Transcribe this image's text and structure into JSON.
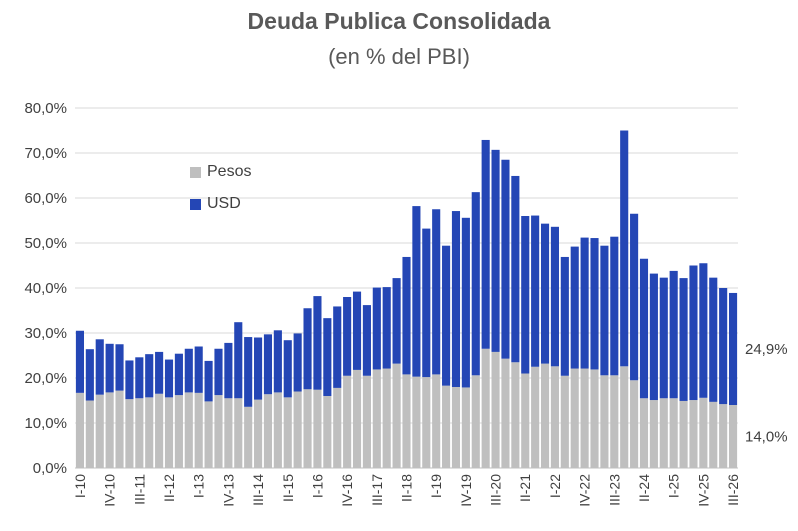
{
  "chart_data": {
    "type": "bar",
    "stacked": true,
    "title": "Deuda Publica Consolidada",
    "subtitle": "(en % del PBI)",
    "xlabel": "",
    "ylabel": "",
    "ylim": [
      0,
      80
    ],
    "yticks": [
      "0,0%",
      "10,0%",
      "20,0%",
      "30,0%",
      "40,0%",
      "50,0%",
      "60,0%",
      "70,0%",
      "80,0%"
    ],
    "grid": true,
    "legend_placement": "upper-left-inside",
    "x_tick_labels": [
      "I-10",
      "IV-10",
      "III-11",
      "II-12",
      "I-13",
      "IV-13",
      "III-14",
      "II-15",
      "I-16",
      "IV-16",
      "III-17",
      "II-18",
      "I-19",
      "IV-19",
      "III-20",
      "II-21",
      "I-22",
      "IV-22",
      "III-23",
      "II-24",
      "I-25",
      "IV-25",
      "III-26"
    ],
    "categories": [
      "I-10",
      "II-10",
      "III-10",
      "IV-10",
      "I-11",
      "II-11",
      "III-11",
      "IV-11",
      "I-12",
      "II-12",
      "III-12",
      "IV-12",
      "I-13",
      "II-13",
      "III-13",
      "IV-13",
      "I-14",
      "II-14",
      "III-14",
      "IV-14",
      "I-15",
      "II-15",
      "III-15",
      "IV-15",
      "I-16",
      "II-16",
      "III-16",
      "IV-16",
      "I-17",
      "II-17",
      "III-17",
      "IV-17",
      "I-18",
      "II-18",
      "III-18",
      "IV-18",
      "I-19",
      "II-19",
      "III-19",
      "IV-19",
      "I-20",
      "II-20",
      "III-20",
      "IV-20",
      "I-21",
      "II-21",
      "III-21",
      "IV-21",
      "I-22",
      "II-22",
      "III-22",
      "IV-22",
      "I-23",
      "II-23",
      "III-23",
      "IV-23",
      "I-24",
      "II-24",
      "III-24",
      "IV-24",
      "I-25",
      "II-25",
      "III-25",
      "IV-25",
      "I-26",
      "II-26",
      "III-26"
    ],
    "series": [
      {
        "name": "Pesos",
        "color": "#bfbfbf",
        "values": [
          16.7,
          15.0,
          16.3,
          16.8,
          17.2,
          15.3,
          15.5,
          15.7,
          16.5,
          15.7,
          16.2,
          16.8,
          16.7,
          14.8,
          16.2,
          15.5,
          15.5,
          13.6,
          15.2,
          16.4,
          16.8,
          15.7,
          17.0,
          17.5,
          17.4,
          16.0,
          17.8,
          20.5,
          21.8,
          20.5,
          21.9,
          22.1,
          23.2,
          20.8,
          20.3,
          20.2,
          20.8,
          18.3,
          18.0,
          17.9,
          20.6,
          26.5,
          25.8,
          24.3,
          23.5,
          21.0,
          22.5,
          23.2,
          22.6,
          20.5,
          22.1,
          22.1,
          21.9,
          20.6,
          20.6,
          22.6,
          19.5,
          15.5,
          15.1,
          15.5,
          15.5,
          14.9,
          15.1,
          15.6,
          14.7,
          14.2,
          14.0
        ]
      },
      {
        "name": "USD",
        "color": "#2446b5",
        "values": [
          13.8,
          11.4,
          12.3,
          10.8,
          10.3,
          8.6,
          9.1,
          9.6,
          9.3,
          8.4,
          9.2,
          9.7,
          10.3,
          9.0,
          10.3,
          12.3,
          16.9,
          15.5,
          13.8,
          13.3,
          13.8,
          12.7,
          12.9,
          18.0,
          20.8,
          17.3,
          18.1,
          17.5,
          17.4,
          15.7,
          18.2,
          18.1,
          19.0,
          26.1,
          37.9,
          33.0,
          36.7,
          31.1,
          39.1,
          37.7,
          40.7,
          46.4,
          44.9,
          44.2,
          41.4,
          35.0,
          33.6,
          31.1,
          31.0,
          26.4,
          27.1,
          29.1,
          29.2,
          28.8,
          30.8,
          52.4,
          37.0,
          31.0,
          28.1,
          26.8,
          28.3,
          27.3,
          29.9,
          29.9,
          27.6,
          25.8,
          24.9
        ]
      }
    ],
    "annotations": [
      "24,9%",
      "14,0%"
    ]
  }
}
